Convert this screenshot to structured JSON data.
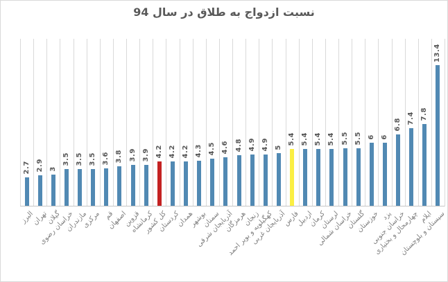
{
  "page": {
    "background": "#FFFFFF",
    "border_color": "#D9D9D9"
  },
  "chart_data": {
    "type": "bar",
    "title": "نسبت ازدواج به طلاق در سال 94",
    "title_color": "#595959",
    "direction": "rtl",
    "categories": [
      "البرز",
      "تهران",
      "گیلان",
      "خراسان رضوی",
      "مازندران",
      "مرکزی",
      "قم",
      "اصفهان",
      "قزوین",
      "کرمانشاه",
      "کل کشور",
      "کردستان",
      "همدان",
      "بوشهر",
      "سمنان",
      "آذربایجان شرقی",
      "هرمزگان",
      "زنجان",
      "کهگیلویه و بویر احمد",
      "آذربایجان غربی",
      "فارس",
      "اردبیل",
      "کرمان",
      "لرستان",
      "خراسان شمالی",
      "گلستان",
      "خوزستان",
      "یزد",
      "خراسان جنوبی",
      "چهارمحال و بختیاری",
      "ایلام",
      "سیستان و بلوچستان"
    ],
    "values": [
      2.7,
      2.9,
      3,
      3.5,
      3.5,
      3.5,
      3.6,
      3.8,
      3.9,
      3.9,
      4.2,
      4.2,
      4.2,
      4.3,
      4.5,
      4.6,
      4.8,
      4.9,
      4.9,
      5,
      5.4,
      5.4,
      5.4,
      5.4,
      5.5,
      5.5,
      6,
      6,
      6.8,
      7.4,
      7.8,
      13.4
    ],
    "default_bar_color": "#5189B3",
    "highlight_bars": [
      {
        "category": "کل کشور",
        "color": "#C42222"
      },
      {
        "category": "فارس",
        "color": "#FBEF43"
      }
    ],
    "value_label_color": "#595959",
    "category_label_color": "#7F7F7F",
    "gridline_color": "#D9D9D9",
    "axis_line_color": "#C6C6C6",
    "xlabel": "",
    "ylabel": "",
    "ylim": [
      0,
      16
    ],
    "grid": "vertical-only",
    "legend": "none",
    "value_label_style": "rotated 90 degrees above each bar",
    "category_label_style": "rotated 45 degrees below axis"
  }
}
